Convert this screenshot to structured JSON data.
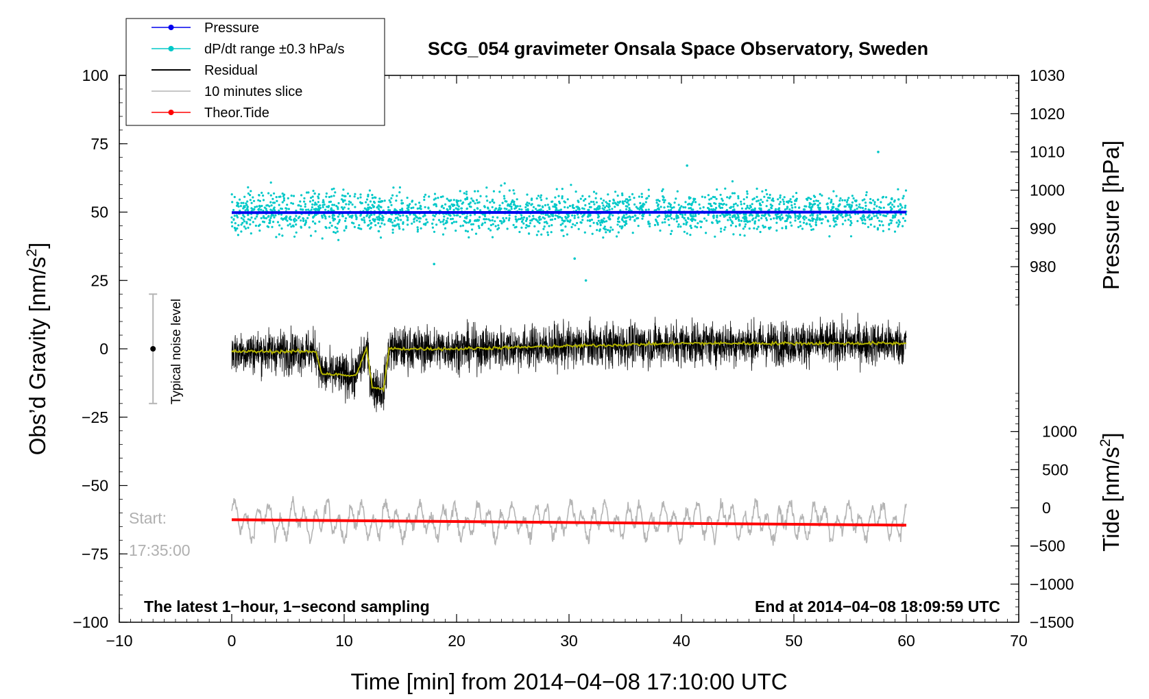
{
  "chart_data": {
    "type": "line",
    "title": "SCG_054 gravimeter Onsala Space Observatory, Sweden",
    "xlabel": "Time [min] from 2014−04−08 17:10:00 UTC",
    "ylabel": "Obs’d Gravity [nm/s",
    "ylabel_sup": "2",
    "ylabel_close": "]",
    "y2label": "Pressure [hPa]",
    "y3label": "Tide [nm/s",
    "y3label_sup": "2",
    "y3label_close": "]",
    "xlim": [
      -10,
      70
    ],
    "ylim": [
      -100,
      100
    ],
    "x_ticks": [
      -10,
      0,
      10,
      20,
      30,
      40,
      50,
      60,
      70
    ],
    "x_tick_labels": [
      "−10",
      "0",
      "10",
      "20",
      "30",
      "40",
      "50",
      "60",
      "70"
    ],
    "y_ticks": [
      -100,
      -75,
      -50,
      -25,
      0,
      25,
      50,
      75,
      100
    ],
    "y_tick_labels": [
      "−100",
      "−75",
      "−50",
      "−25",
      "0",
      "25",
      "50",
      "75",
      "100"
    ],
    "pressure_axis": {
      "ticks": [
        980,
        990,
        1000,
        1010,
        1020,
        1030
      ],
      "tick_labels": [
        "980",
        "990",
        "1000",
        "1010",
        "1020",
        "1030"
      ],
      "range": [
        970,
        1030
      ]
    },
    "tide_axis": {
      "ticks": [
        -1500,
        -1000,
        -500,
        0,
        500,
        1000
      ],
      "tick_labels": [
        "−1500",
        "−1000",
        "−500",
        "0",
        "500",
        "1000"
      ],
      "range": [
        -1500,
        1500
      ]
    },
    "legend": [
      {
        "label": "Pressure",
        "color": "#0000ee",
        "marker": true
      },
      {
        "label": "dP/dt range ±0.3 hPa/s",
        "color": "#00c8c8",
        "marker": true
      },
      {
        "label": "Residual",
        "color": "#000000",
        "marker": false
      },
      {
        "label": "10 minutes slice",
        "color": "#b4b4b4",
        "marker": false
      },
      {
        "label": "Theor.Tide",
        "color": "#ff0000",
        "marker": true
      }
    ],
    "series": [
      {
        "name": "Pressure",
        "color": "#0000ee",
        "x": [
          0,
          60
        ],
        "y_gravity_scale": [
          49.8,
          50.0
        ]
      },
      {
        "name": "dP/dt range ±0.3 hPa/s",
        "color": "#00c8c8",
        "center": 50,
        "spread": 5,
        "outliers_x": [
          18,
          30.5,
          31.5,
          40.5,
          57.5
        ],
        "outliers_y": [
          31,
          33,
          25,
          67,
          72
        ]
      },
      {
        "name": "Residual",
        "color": "#000000",
        "x": [
          0,
          7.5,
          8,
          11,
          12,
          12.5,
          13.5,
          14,
          20,
          30,
          40,
          50,
          60
        ],
        "y_mean": [
          -1,
          -1,
          -9,
          -10,
          0,
          -14,
          -15,
          0,
          0,
          1,
          2,
          2,
          2
        ],
        "noise": 5
      },
      {
        "name": "Residual (smoothed)",
        "color": "#b4b400",
        "x": [
          0,
          7.5,
          8,
          11,
          12,
          12.5,
          13.5,
          14,
          20,
          30,
          40,
          50,
          60
        ],
        "y_mean": [
          -1,
          -1,
          -9,
          -10,
          0,
          -14,
          -15,
          0,
          0,
          1,
          2,
          2,
          2
        ]
      },
      {
        "name": "10 minutes slice",
        "color": "#b4b4b4",
        "center": -63,
        "amplitude": 6
      },
      {
        "name": "Theor.Tide",
        "color": "#ff0000",
        "x": [
          0,
          60
        ],
        "y_gravity_scale": [
          -62.5,
          -64.5
        ]
      }
    ],
    "annotations": {
      "bottom_left": "The latest 1−hour, 1−second sampling",
      "bottom_right": "End at 2014−04−08 18:09:59 UTC",
      "start_label": "Start:",
      "start_time": "17:35:00",
      "noise_label": "Typical noise level",
      "noise_bar": {
        "x": -7,
        "center": 0,
        "half_range": 20
      }
    }
  }
}
